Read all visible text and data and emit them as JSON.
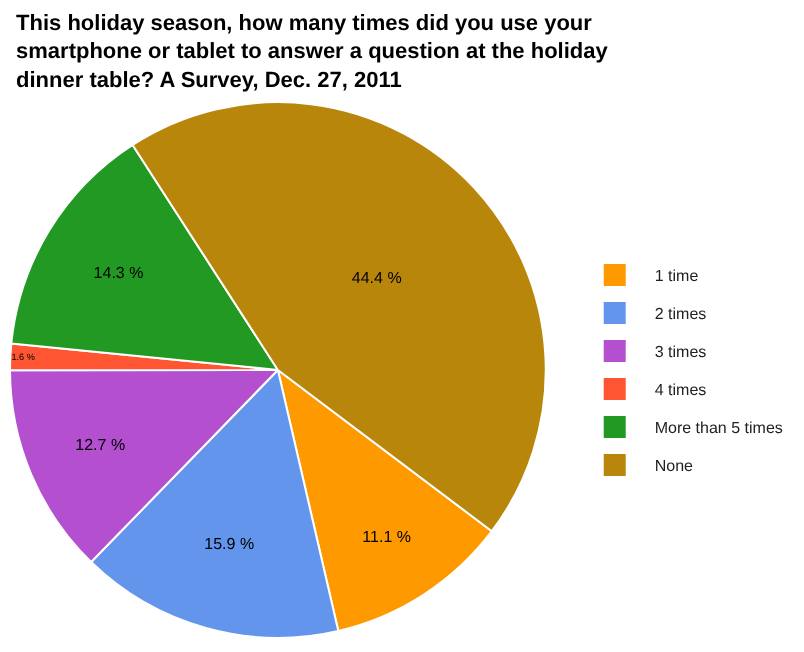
{
  "chart_data": {
    "type": "pie",
    "title": "This holiday season, how many times did you use your smartphone or tablet to answer a question at the holiday dinner table? A Survey, Dec. 27, 2011",
    "categories": [
      "1 time",
      "2 times",
      "3 times",
      "4 times",
      "More than 5 times",
      "None"
    ],
    "values": [
      11.1,
      15.9,
      12.7,
      1.6,
      14.3,
      44.4
    ],
    "value_labels": [
      "11.1 %",
      "15.9 %",
      "12.7 %",
      "1.6 %",
      "14.3 %",
      "44.4 %"
    ],
    "colors": [
      "#ff9900",
      "#6495ed",
      "#b44fd0",
      "#ff5533",
      "#229922",
      "#b8860b"
    ],
    "legend": "right"
  }
}
